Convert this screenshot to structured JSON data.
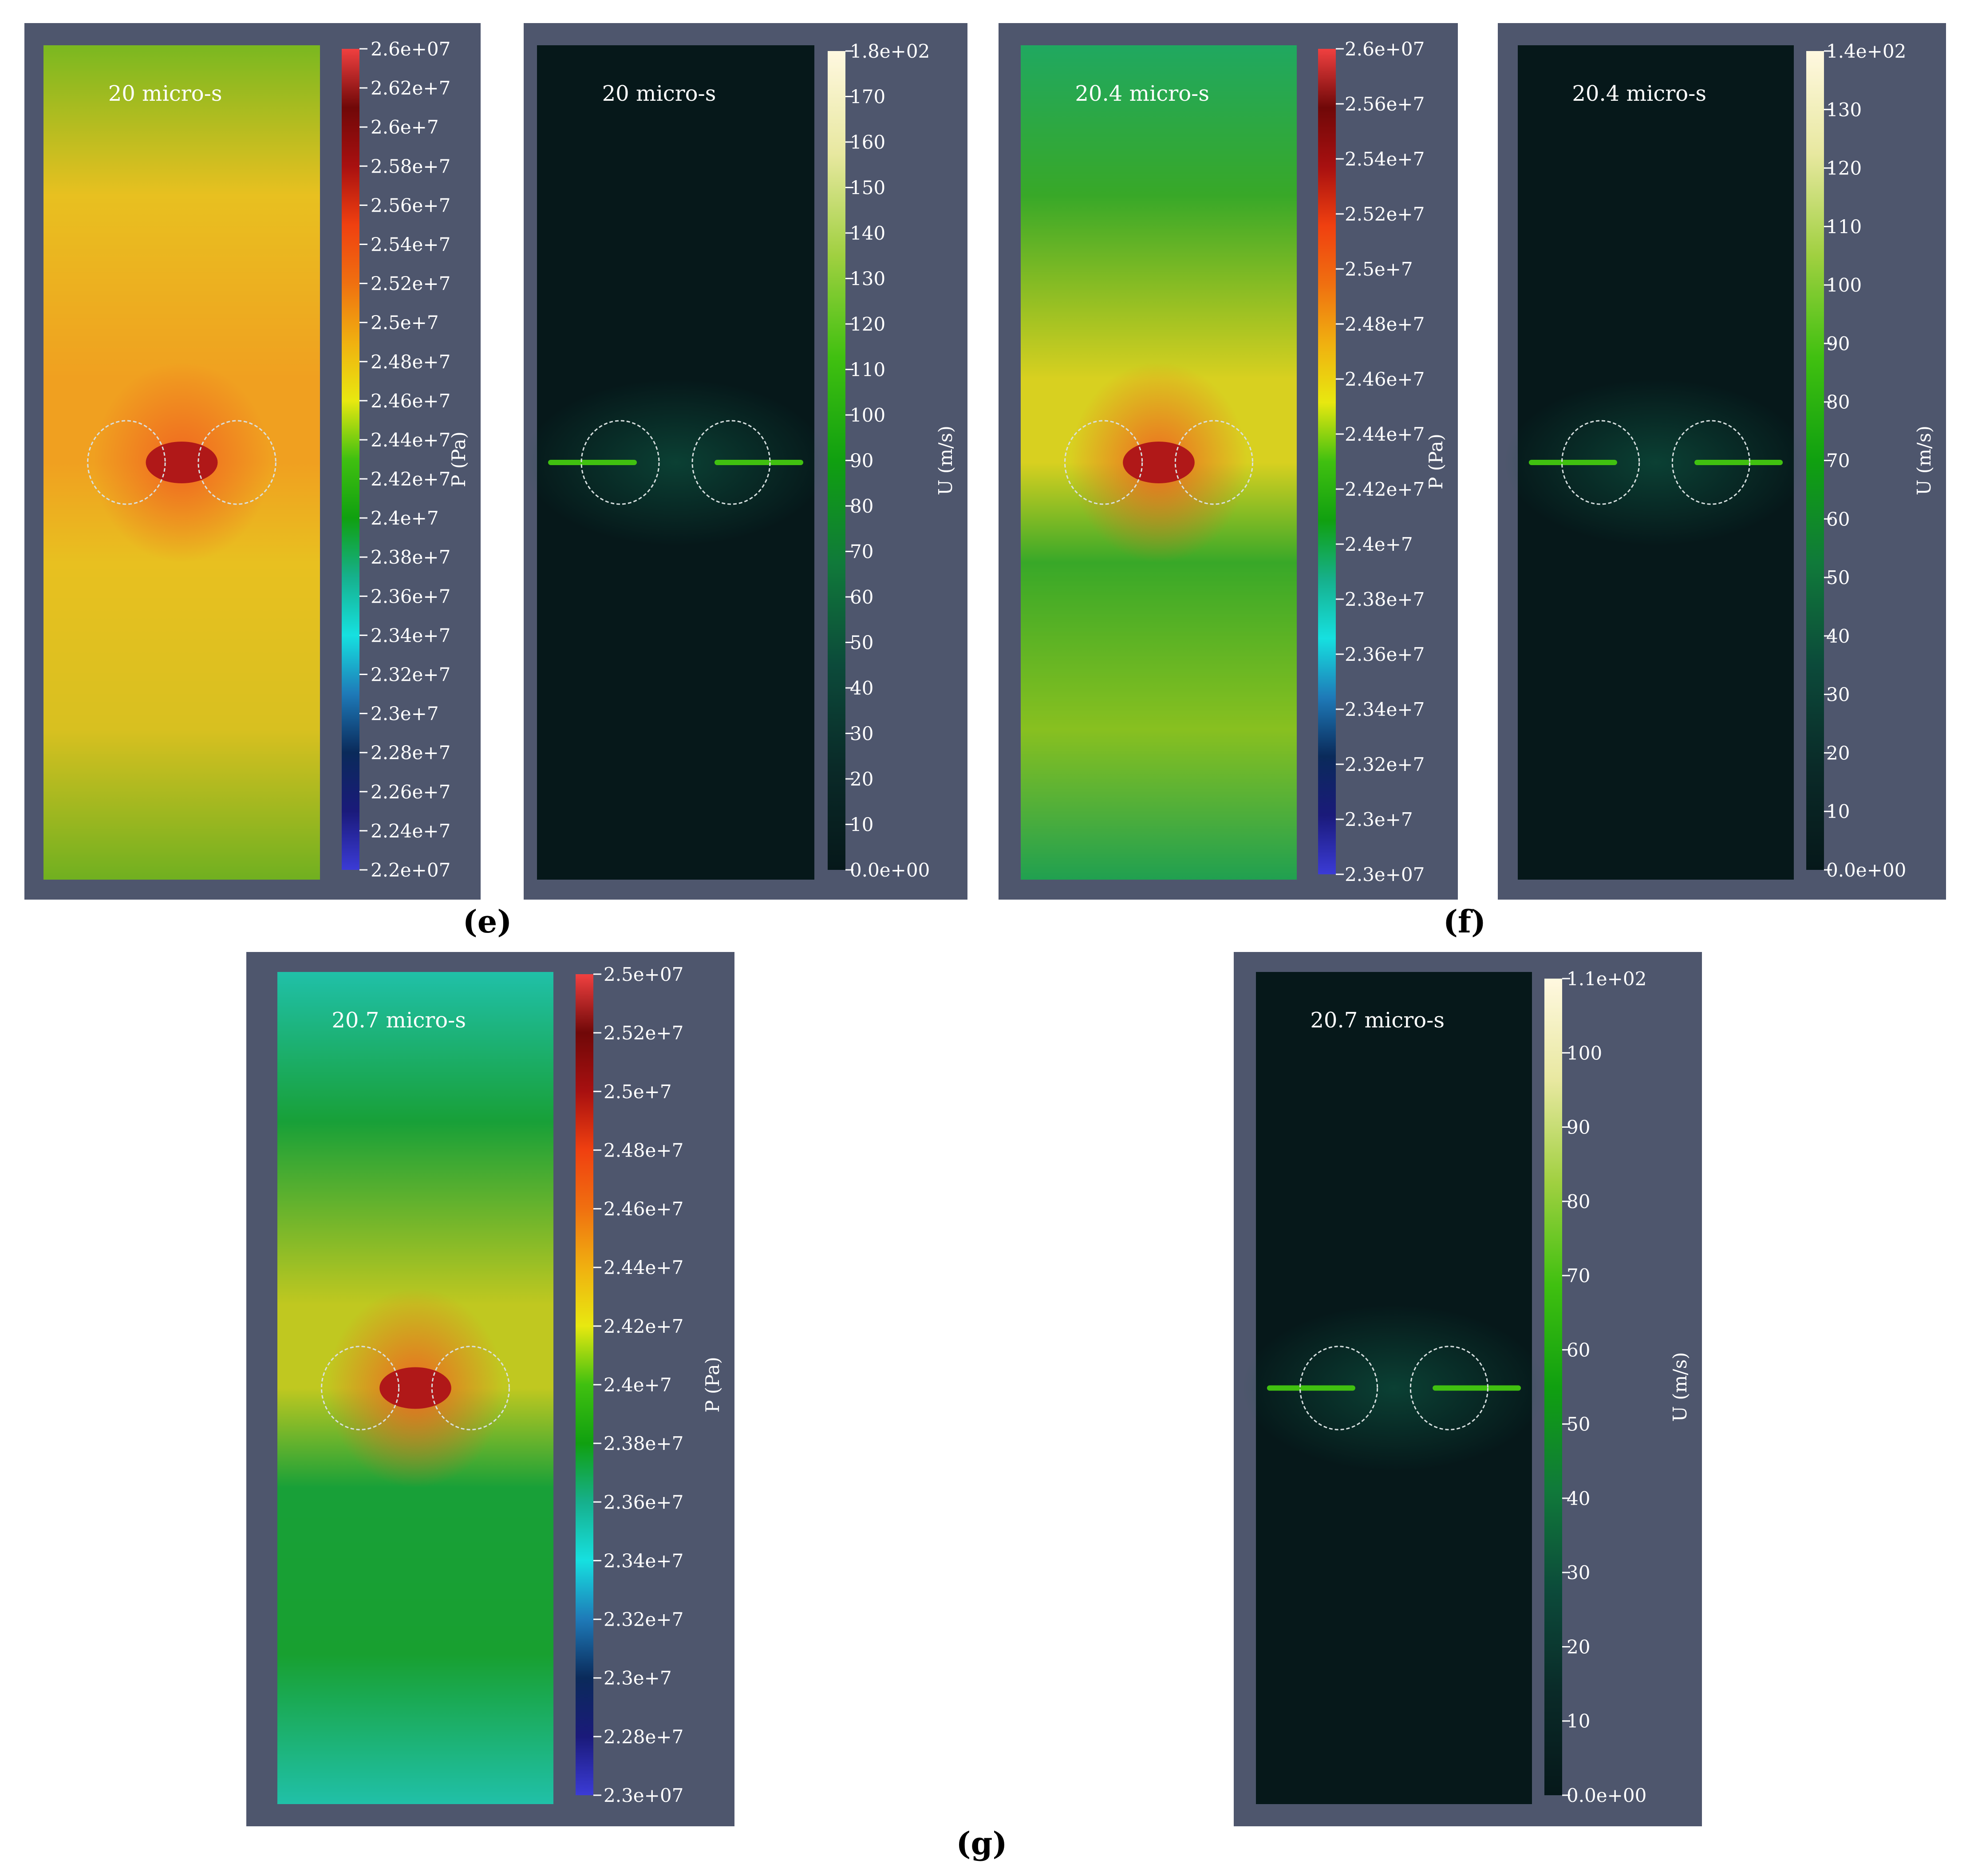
{
  "colors": {
    "panel_bg": "#4e566d",
    "label_text": "#ffffff",
    "pressure_colormap": [
      "#3b3bd6",
      "#1a1a7a",
      "#0a2a5a",
      "#1e7ab8",
      "#16e0e0",
      "#16b08c",
      "#10a010",
      "#40c010",
      "#e8e810",
      "#f0b010",
      "#f07010",
      "#f04010",
      "#a81010",
      "#700808",
      "#f04040"
    ],
    "velocity_colormap": [
      "#06181a",
      "#0a2a28",
      "#0c4a3a",
      "#107a3a",
      "#10a010",
      "#40c010",
      "#a0d040",
      "#e8e8a0",
      "#fff8e0"
    ]
  },
  "figure_labels": [
    {
      "id": "e",
      "text": "(e)"
    },
    {
      "id": "f",
      "text": "(f)"
    },
    {
      "id": "g",
      "text": "(g)"
    }
  ],
  "panels": [
    {
      "id": "p1",
      "kind": "pressure",
      "time": "20 micro-s",
      "axis_title": "P (Pa)",
      "ticks": [
        "2.6e+07",
        "2.62e+7",
        "2.6e+7",
        "2.58e+7",
        "2.56e+7",
        "2.54e+7",
        "2.52e+7",
        "2.5e+7",
        "2.48e+7",
        "2.46e+7",
        "2.44e+7",
        "2.42e+7",
        "2.4e+7",
        "2.38e+7",
        "2.36e+7",
        "2.34e+7",
        "2.32e+7",
        "2.3e+7",
        "2.28e+7",
        "2.26e+7",
        "2.24e+7",
        "2.2e+07"
      ],
      "field_colors": {
        "top": "#7ab820",
        "upper": "#e8c020",
        "middle": "#f0a020",
        "core": "#b01818",
        "lower": "#d8c020",
        "bottom": "#70b020"
      }
    },
    {
      "id": "p2",
      "kind": "velocity",
      "time": "20 micro-s",
      "axis_title": "U (m/s)",
      "ticks": [
        "1.8e+02",
        "170",
        "160",
        "150",
        "140",
        "130",
        "120",
        "110",
        "100",
        "90",
        "80",
        "70",
        "60",
        "50",
        "40",
        "30",
        "20",
        "10",
        "0.0e+00"
      ]
    },
    {
      "id": "p3",
      "kind": "pressure",
      "time": "20.4 micro-s",
      "axis_title": "P (Pa)",
      "ticks": [
        "2.6e+07",
        "2.56e+7",
        "2.54e+7",
        "2.52e+7",
        "2.5e+7",
        "2.48e+7",
        "2.46e+7",
        "2.44e+7",
        "2.42e+7",
        "2.4e+7",
        "2.38e+7",
        "2.36e+7",
        "2.34e+7",
        "2.32e+7",
        "2.3e+7",
        "2.3e+07"
      ],
      "field_colors": {
        "top": "#20a860",
        "upper": "#38a828",
        "middle": "#d8d020",
        "core": "#b01818",
        "lower": "#88c020",
        "bottom": "#20a050"
      }
    },
    {
      "id": "p4",
      "kind": "velocity",
      "time": "20.4 micro-s",
      "axis_title": "U (m/s)",
      "ticks": [
        "1.4e+02",
        "130",
        "120",
        "110",
        "100",
        "90",
        "80",
        "70",
        "60",
        "50",
        "40",
        "30",
        "20",
        "10",
        "0.0e+00"
      ]
    },
    {
      "id": "p5",
      "kind": "pressure",
      "time": "20.7 micro-s",
      "axis_title": "P (Pa)",
      "ticks": [
        "2.5e+07",
        "2.52e+7",
        "2.5e+7",
        "2.48e+7",
        "2.46e+7",
        "2.44e+7",
        "2.42e+7",
        "2.4e+7",
        "2.38e+7",
        "2.36e+7",
        "2.34e+7",
        "2.32e+7",
        "2.3e+7",
        "2.28e+7",
        "2.3e+07"
      ],
      "field_colors": {
        "top": "#20c0a8",
        "upper": "#18a038",
        "middle": "#c0c820",
        "core": "#b01818",
        "lower": "#18a030",
        "bottom": "#20c0a8"
      }
    },
    {
      "id": "p6",
      "kind": "velocity",
      "time": "20.7 micro-s",
      "axis_title": "U (m/s)",
      "ticks": [
        "1.1e+02",
        "100",
        "90",
        "80",
        "70",
        "60",
        "50",
        "40",
        "30",
        "20",
        "10",
        "0.0e+00"
      ]
    }
  ]
}
